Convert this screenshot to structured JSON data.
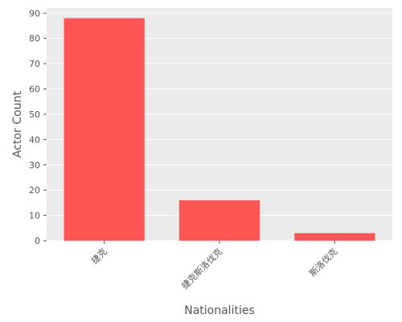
{
  "chart_data": {
    "type": "bar",
    "categories": [
      "捷克",
      "捷克斯洛伐克",
      "斯洛伐克"
    ],
    "values": [
      88,
      16,
      3
    ],
    "xlabel": "Nationalities",
    "ylabel": "Actor Count",
    "ylim": [
      0,
      92
    ],
    "yticks": [
      0,
      10,
      20,
      30,
      40,
      50,
      60,
      70,
      80,
      90
    ],
    "grid": true,
    "bar_color": "#ff5555",
    "panel_color": "#ebebeb",
    "grid_color": "#ffffff"
  }
}
